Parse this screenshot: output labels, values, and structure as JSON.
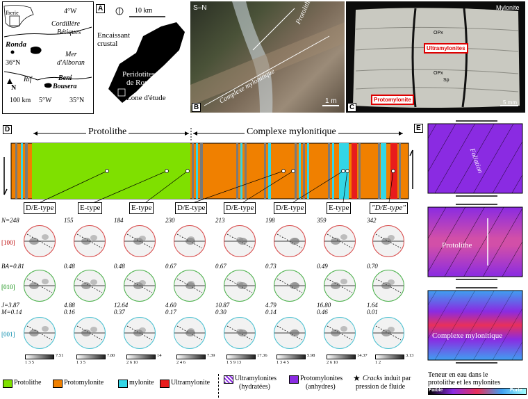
{
  "panel_a": {
    "letter": "A",
    "map_iberie": "Iberie",
    "map_lon_4w": "4°W",
    "map_cordillere": "Cordillère",
    "map_betiques": "Bétiques",
    "map_ronda": "Ronda",
    "map_mer": "Mer",
    "map_alboran": "d'Alboran",
    "map_lat_36n": "36°N",
    "map_rif": "Rif",
    "map_beni": "Beni",
    "map_bousera": "Bousera",
    "map_scale": "100 km",
    "map_lon_5w": "5°W",
    "map_lat_35n": "35°N",
    "map_north": "N",
    "scale_10km": "10 km",
    "encaissant_1": "Encaissant",
    "encaissant_2": "crustal",
    "peridotites_1": "Peridotites",
    "peridotites_2": "de Ronda",
    "zone": "Zone d'étude"
  },
  "panel_b": {
    "letter": "B",
    "orient": "S–N",
    "protolithe": "Protolithe",
    "complexe": "Complexe mylonitique",
    "scale": "1 m"
  },
  "panel_c": {
    "letter": "C",
    "title": "Mylonite",
    "ultra": "Ultramylonites",
    "proto": "Protomylonite",
    "opx1": "OPx",
    "opx2": "OPx",
    "sp": "Sp",
    "scale": "5 mm"
  },
  "panel_d": {
    "letter": "D",
    "protolithe_header": "Protolithe",
    "complexe_header": "Complexe mylonitique",
    "types": [
      "D/E-type",
      "E-type",
      "E-type",
      "D/E-type",
      "D/E-type",
      "D/E-type",
      "E-type",
      "\"D/E-type\""
    ],
    "n_label": "N=248",
    "n_values": [
      "155",
      "184",
      "230",
      "213",
      "198",
      "359",
      "342"
    ],
    "ba_label": "BA=0.81",
    "ba_values": [
      "0.48",
      "0.48",
      "0.67",
      "0.67",
      "0.73",
      "0.49",
      "0.70"
    ],
    "j_label": "J=3.87",
    "j_values": [
      "4.88",
      "12.64",
      "4.60",
      "10.87",
      "4.79",
      "16.80",
      "1.64"
    ],
    "m_label": "M=0.14",
    "m_values": [
      "0.16",
      "0.37",
      "0.17",
      "0.30",
      "0.14",
      "0.46",
      "0.01"
    ],
    "axis_100": "[100]",
    "axis_010": "[010]",
    "axis_001": "[001]",
    "scales": [
      {
        "ticks": "1  3  5",
        "max": "7.51"
      },
      {
        "ticks": "1  3  5",
        "max": "7.80"
      },
      {
        "ticks": "2  6  10",
        "max": "14"
      },
      {
        "ticks": "2  4  6",
        "max": "7.39"
      },
      {
        "ticks": "1  5  9  13",
        "max": "17.36"
      },
      {
        "ticks": "1  3  4  5",
        "max": "5.98"
      },
      {
        "ticks": "2  6  10",
        "max": "14.37"
      },
      {
        "ticks": "1    2",
        "max": "3.13"
      }
    ]
  },
  "panel_e": {
    "letter": "E",
    "foliation": "Foliation",
    "protolithe": "Protolithe",
    "complexe": "Complexe mylonitique",
    "teneur_1": "Teneur en eau dans le",
    "teneur_2": "protolithe et les mylonites",
    "faible": "Faible",
    "forte": "Forte"
  },
  "legend": {
    "protolithe": "Protolithe",
    "protomylonite": "Protomylonite",
    "mylonite": "mylonite",
    "ultramylonite": "Ultramylonite",
    "ultra_h_1": "Ultramylonites",
    "ultra_h_2": "(hydratées)",
    "proto_a_1": "Protomylonites",
    "proto_a_2": "(anhydres)",
    "cracks_1": "Cracks",
    "cracks_1b": " induit par",
    "cracks_2": "pression de fluide"
  },
  "colors": {
    "protolithe": "#7fe000",
    "protomylonite": "#f08000",
    "mylonite": "#33d6e6",
    "ultramylonite": "#e81c1c",
    "purple": "#8a2be2"
  }
}
